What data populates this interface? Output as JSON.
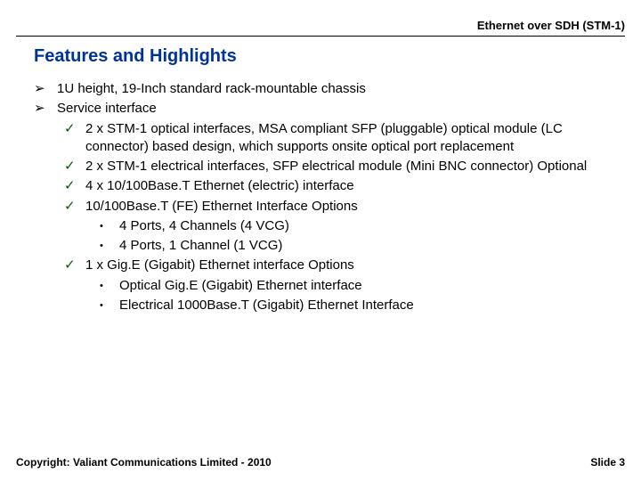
{
  "header": {
    "product": "Ethernet over SDH (STM-1)"
  },
  "title": {
    "text": "Features and Highlights",
    "color": "#003399"
  },
  "bullets": {
    "arrow_glyph": "➢",
    "check_glyph": "✓",
    "dot_glyph": "•",
    "check_color": "#006000",
    "items": [
      {
        "level": 1,
        "text": "1U height, 19-Inch standard rack-mountable chassis"
      },
      {
        "level": 1,
        "text": "Service interface"
      },
      {
        "level": 2,
        "text": "2 x STM-1 optical interfaces, MSA compliant SFP (pluggable) optical module (LC connector) based design, which supports onsite optical port replacement"
      },
      {
        "level": 2,
        "text": "2 x STM-1 electrical interfaces, SFP electrical module (Mini BNC connector) Optional"
      },
      {
        "level": 2,
        "text": "4 x 10/100Base.T Ethernet (electric) interface"
      },
      {
        "level": 2,
        "text": "10/100Base.T (FE) Ethernet Interface Options"
      },
      {
        "level": 3,
        "text": "4 Ports, 4 Channels (4 VCG)"
      },
      {
        "level": 3,
        "text": "4 Ports, 1 Channel (1 VCG)"
      },
      {
        "level": 2,
        "text": "1 x Gig.E (Gigabit) Ethernet interface Options"
      },
      {
        "level": 3,
        "text": "Optical Gig.E (Gigabit) Ethernet interface"
      },
      {
        "level": 3,
        "text": "Electrical 1000Base.T (Gigabit) Ethernet Interface"
      }
    ]
  },
  "footer": {
    "copyright": "Copyright: Valiant Communications Limited - 2010",
    "slide": "Slide 3"
  }
}
